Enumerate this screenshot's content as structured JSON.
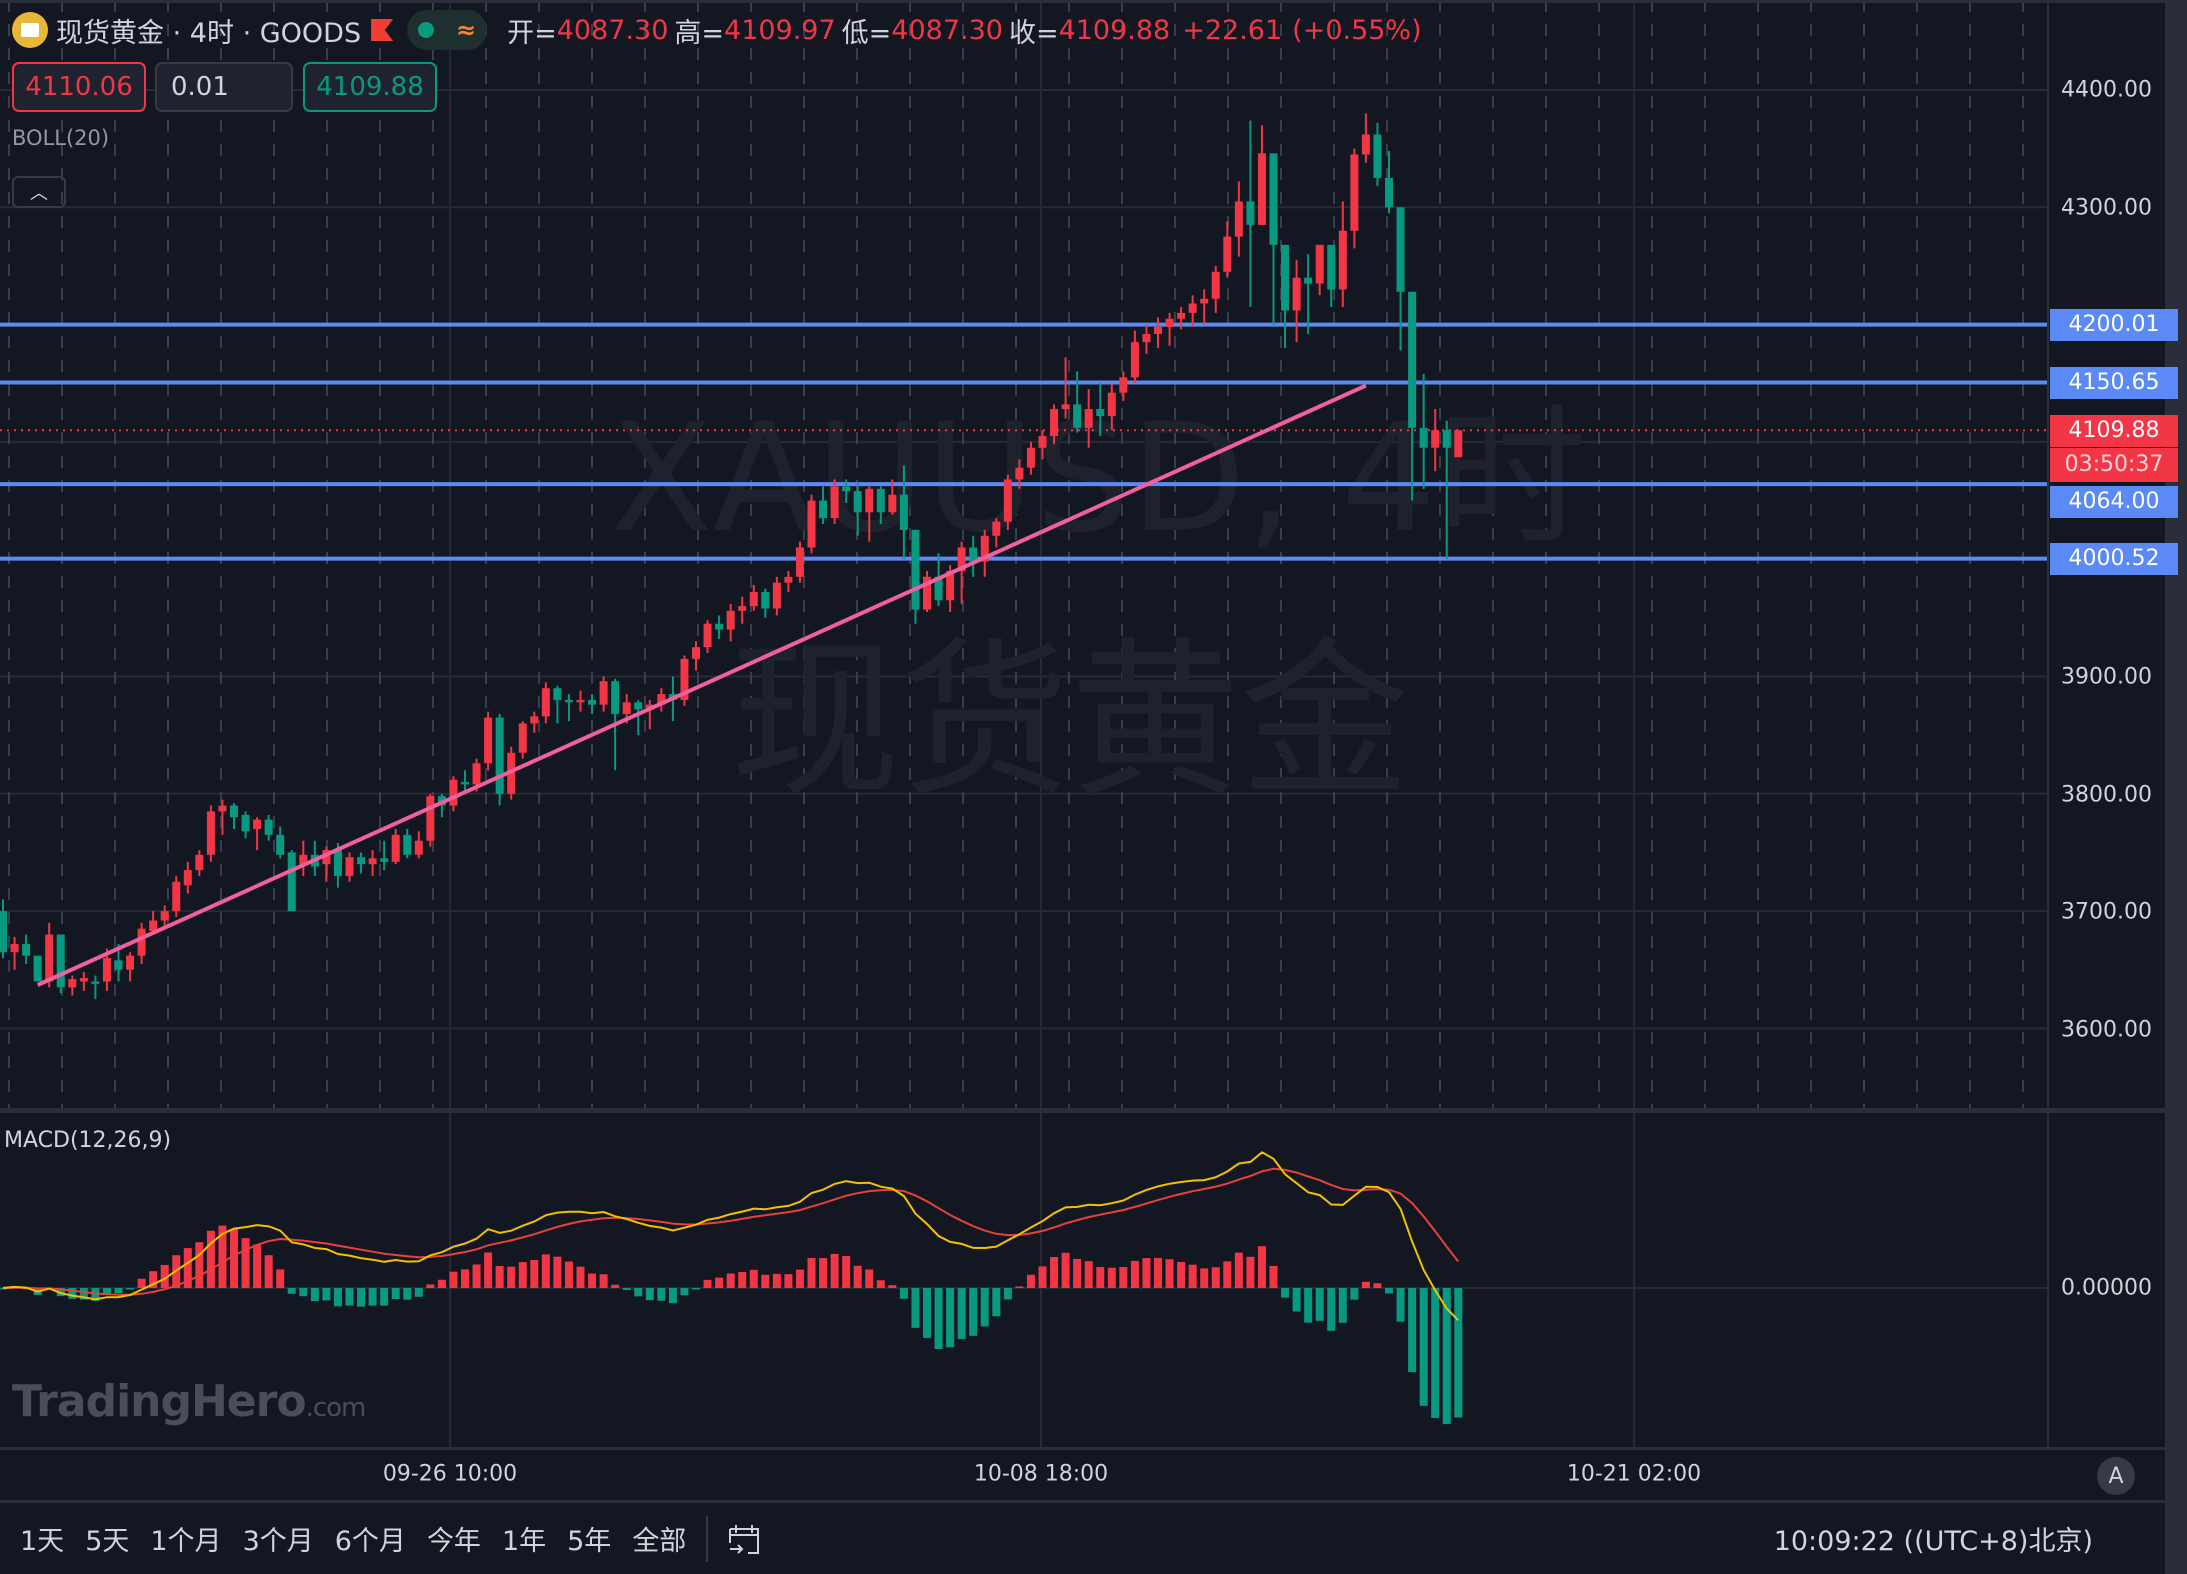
{
  "header": {
    "symbol_name": "现货黄金",
    "separator": "·",
    "timeframe": "4时",
    "exchange": "GOODS",
    "ohlc": {
      "open_label": "开=",
      "open": "4087.30",
      "high_label": "高=",
      "high": "4109.97",
      "low_label": "低=",
      "low": "4087.30",
      "close_label": "收=",
      "close": "4109.88",
      "change": "+22.61",
      "change_pct": "(+0.55%)"
    }
  },
  "trade_panel": {
    "sell_price": "4110.06",
    "quantity": "0.01",
    "buy_price": "4109.88"
  },
  "indicators": {
    "boll": "BOLL(20)",
    "macd": "MACD(12,26,9)",
    "macd_zero": "0.00000"
  },
  "watermark": {
    "line1": "XAUUSD, 4时",
    "line2": "现货黄金",
    "brand": "TradingHero",
    "brand_suffix": ".com"
  },
  "price_axis": {
    "ticks": [
      "4400.00",
      "4300.00",
      "3900.00",
      "3800.00",
      "3700.00",
      "3600.00"
    ],
    "tags": {
      "h1": "4200.01",
      "h2": "4150.65",
      "last": "4109.88",
      "countdown": "03:50:37",
      "h3": "4064.00",
      "h4": "4000.52"
    }
  },
  "time_axis": {
    "labels": [
      "09-26 10:00",
      "10-08 18:00",
      "10-21 02:00"
    ],
    "auto_scale_button": "A"
  },
  "bottom_bar": {
    "ranges": [
      "1天",
      "5天",
      "1个月",
      "3个月",
      "6个月",
      "今年",
      "1年",
      "5年",
      "全部"
    ],
    "clock": "10:09:22 ((UTC+8)北京)"
  },
  "colors": {
    "background": "#131722",
    "up": "#f23645",
    "down": "#089981",
    "hline": "#5b8af7",
    "trendline": "#f0609e",
    "macd_line": "#f5c000",
    "signal_line": "#e8403a"
  },
  "chart_data": {
    "type": "candlestick",
    "title": "现货黄金 · 4时 · GOODS (XAUUSD)",
    "ylim": [
      3540,
      4440
    ],
    "yticks": [
      3600,
      3700,
      3800,
      3900,
      4000,
      4100,
      4200,
      4300,
      4400
    ],
    "xticks": [
      "09-26 10:00",
      "10-08 18:00",
      "10-21 02:00"
    ],
    "horizontal_lines": [
      4200.01,
      4150.65,
      4064.0,
      4000.52
    ],
    "last_price": 4109.88,
    "trendline": {
      "from": [
        3,
        3637
      ],
      "to": [
        118,
        4148
      ]
    },
    "candles": [
      [
        3700,
        3710,
        3660,
        3665
      ],
      [
        3665,
        3678,
        3650,
        3672
      ],
      [
        3672,
        3680,
        3655,
        3662
      ],
      [
        3662,
        3662,
        3640,
        3640
      ],
      [
        3640,
        3690,
        3635,
        3680
      ],
      [
        3680,
        3680,
        3630,
        3635
      ],
      [
        3635,
        3645,
        3628,
        3642
      ],
      [
        3640,
        3648,
        3632,
        3643
      ],
      [
        3640,
        3645,
        3625,
        3638
      ],
      [
        3640,
        3668,
        3632,
        3660
      ],
      [
        3658,
        3672,
        3640,
        3650
      ],
      [
        3650,
        3665,
        3640,
        3662
      ],
      [
        3662,
        3690,
        3655,
        3685
      ],
      [
        3683,
        3700,
        3680,
        3692
      ],
      [
        3692,
        3705,
        3686,
        3700
      ],
      [
        3700,
        3730,
        3695,
        3725
      ],
      [
        3722,
        3742,
        3715,
        3735
      ],
      [
        3735,
        3752,
        3730,
        3748
      ],
      [
        3748,
        3790,
        3742,
        3785
      ],
      [
        3785,
        3795,
        3765,
        3790
      ],
      [
        3790,
        3792,
        3770,
        3780
      ],
      [
        3782,
        3785,
        3762,
        3768
      ],
      [
        3770,
        3780,
        3752,
        3778
      ],
      [
        3778,
        3782,
        3760,
        3765
      ],
      [
        3765,
        3772,
        3745,
        3748
      ],
      [
        3750,
        3752,
        3738,
        3700
      ],
      [
        3740,
        3760,
        3730,
        3748
      ],
      [
        3748,
        3760,
        3730,
        3738
      ],
      [
        3740,
        3755,
        3725,
        3752
      ],
      [
        3752,
        3758,
        3720,
        3730
      ],
      [
        3730,
        3750,
        3725,
        3746
      ],
      [
        3746,
        3750,
        3732,
        3740
      ],
      [
        3740,
        3752,
        3730,
        3745
      ],
      [
        3745,
        3760,
        3735,
        3742
      ],
      [
        3742,
        3770,
        3740,
        3765
      ],
      [
        3765,
        3770,
        3745,
        3748
      ],
      [
        3748,
        3768,
        3745,
        3760
      ],
      [
        3760,
        3800,
        3755,
        3798
      ],
      [
        3798,
        3800,
        3780,
        3790
      ],
      [
        3790,
        3815,
        3785,
        3812
      ],
      [
        3810,
        3820,
        3800,
        3808
      ],
      [
        3808,
        3830,
        3802,
        3826
      ],
      [
        3826,
        3870,
        3820,
        3865
      ],
      [
        3865,
        3868,
        3790,
        3800
      ],
      [
        3800,
        3840,
        3795,
        3835
      ],
      [
        3835,
        3862,
        3830,
        3860
      ],
      [
        3860,
        3870,
        3852,
        3866
      ],
      [
        3866,
        3895,
        3860,
        3890
      ],
      [
        3890,
        3892,
        3860,
        3880
      ],
      [
        3880,
        3885,
        3862,
        3878
      ],
      [
        3878,
        3888,
        3870,
        3880
      ],
      [
        3880,
        3885,
        3868,
        3876
      ],
      [
        3876,
        3900,
        3870,
        3896
      ],
      [
        3896,
        3898,
        3820,
        3868
      ],
      [
        3868,
        3885,
        3860,
        3878
      ],
      [
        3878,
        3880,
        3850,
        3872
      ],
      [
        3872,
        3880,
        3855,
        3876
      ],
      [
        3876,
        3890,
        3870,
        3885
      ],
      [
        3885,
        3900,
        3862,
        3880
      ],
      [
        3880,
        3918,
        3875,
        3915
      ],
      [
        3915,
        3930,
        3905,
        3925
      ],
      [
        3925,
        3948,
        3920,
        3945
      ],
      [
        3945,
        3952,
        3932,
        3940
      ],
      [
        3940,
        3962,
        3930,
        3956
      ],
      [
        3956,
        3968,
        3945,
        3960
      ],
      [
        3960,
        3978,
        3956,
        3972
      ],
      [
        3972,
        3975,
        3950,
        3958
      ],
      [
        3958,
        3985,
        3952,
        3980
      ],
      [
        3980,
        3990,
        3972,
        3985
      ],
      [
        3985,
        4015,
        3980,
        4010
      ],
      [
        4010,
        4055,
        4005,
        4050
      ],
      [
        4050,
        4062,
        4030,
        4035
      ],
      [
        4035,
        4068,
        4030,
        4062
      ],
      [
        4062,
        4068,
        4048,
        4058
      ],
      [
        4058,
        4065,
        4020,
        4040
      ],
      [
        4040,
        4062,
        4015,
        4060
      ],
      [
        4060,
        4062,
        4030,
        4040
      ],
      [
        4040,
        4068,
        4038,
        4055
      ],
      [
        4055,
        4080,
        4000,
        4025
      ],
      [
        4025,
        4025,
        3945,
        3957
      ],
      [
        3957,
        3990,
        3955,
        3985
      ],
      [
        3985,
        4005,
        3960,
        3965
      ],
      [
        3965,
        3995,
        3955,
        3990
      ],
      [
        3990,
        4015,
        3962,
        4010
      ],
      [
        4010,
        4020,
        3985,
        3998
      ],
      [
        3998,
        4025,
        3985,
        4020
      ],
      [
        4020,
        4035,
        4010,
        4032
      ],
      [
        4032,
        4072,
        4025,
        4068
      ],
      [
        4068,
        4085,
        4060,
        4078
      ],
      [
        4078,
        4100,
        4072,
        4095
      ],
      [
        4095,
        4110,
        4085,
        4105
      ],
      [
        4105,
        4132,
        4098,
        4128
      ],
      [
        4128,
        4172,
        4120,
        4132
      ],
      [
        4132,
        4160,
        4108,
        4112
      ],
      [
        4112,
        4145,
        4095,
        4128
      ],
      [
        4128,
        4150,
        4105,
        4122
      ],
      [
        4122,
        4150,
        4110,
        4142
      ],
      [
        4142,
        4160,
        4135,
        4155
      ],
      [
        4155,
        4195,
        4150,
        4185
      ],
      [
        4185,
        4200,
        4175,
        4192
      ],
      [
        4192,
        4206,
        4180,
        4198
      ],
      [
        4198,
        4210,
        4182,
        4205
      ],
      [
        4205,
        4215,
        4196,
        4210
      ],
      [
        4210,
        4225,
        4198,
        4218
      ],
      [
        4218,
        4230,
        4200,
        4222
      ],
      [
        4222,
        4250,
        4210,
        4245
      ],
      [
        4245,
        4288,
        4240,
        4275
      ],
      [
        4275,
        4322,
        4258,
        4305
      ],
      [
        4305,
        4374,
        4215,
        4285
      ],
      [
        4285,
        4370,
        4285,
        4346
      ],
      [
        4346,
        4346,
        4200,
        4268
      ],
      [
        4268,
        4268,
        4180,
        4212
      ],
      [
        4212,
        4255,
        4185,
        4240
      ],
      [
        4240,
        4260,
        4192,
        4235
      ],
      [
        4235,
        4262,
        4225,
        4268
      ],
      [
        4268,
        4262,
        4215,
        4230
      ],
      [
        4230,
        4305,
        4215,
        4280
      ],
      [
        4280,
        4350,
        4265,
        4345
      ],
      [
        4345,
        4380,
        4338,
        4362
      ],
      [
        4362,
        4372,
        4318,
        4325
      ],
      [
        4325,
        4348,
        4295,
        4300
      ],
      [
        4300,
        4300,
        4178,
        4228
      ],
      [
        4228,
        4205,
        4050,
        4112
      ],
      [
        4112,
        4158,
        4060,
        4095
      ],
      [
        4095,
        4128,
        4075,
        4110
      ],
      [
        4110,
        4118,
        4000,
        4095
      ],
      [
        4087,
        4110,
        4087,
        4110
      ]
    ],
    "macd": {
      "zero_line": 0,
      "histogram_note": "red = positive, green = negative; strong negative bars at the end",
      "macd_line_color": "yellow",
      "signal_line_color": "red"
    }
  }
}
